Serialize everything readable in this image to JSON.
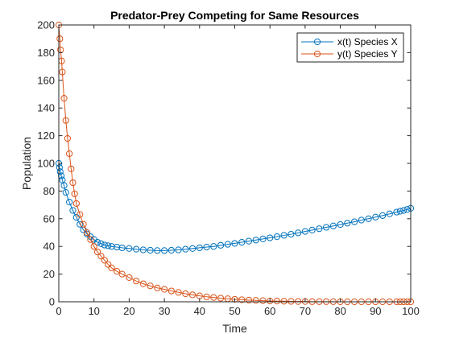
{
  "chart_data": {
    "type": "line",
    "title": "Predator-Prey Competing for Same Resources",
    "xlabel": "Time",
    "ylabel": "Population",
    "xlim": [
      0,
      100
    ],
    "ylim": [
      0,
      200
    ],
    "xticks": [
      "0",
      "10",
      "20",
      "30",
      "40",
      "50",
      "60",
      "70",
      "80",
      "90",
      "100"
    ],
    "yticks": [
      "0",
      "20",
      "40",
      "60",
      "80",
      "100",
      "120",
      "140",
      "160",
      "180",
      "200"
    ],
    "grid": false,
    "legend_location": "top-right",
    "marker": "circle",
    "series": [
      {
        "name": "x(t) Species X",
        "color": "#0072BD",
        "points": [
          [
            0,
            100
          ],
          [
            0.2,
            97
          ],
          [
            0.4,
            94
          ],
          [
            0.7,
            91
          ],
          [
            1,
            88
          ],
          [
            1.5,
            84
          ],
          [
            2,
            79
          ],
          [
            3,
            72
          ],
          [
            4,
            66
          ],
          [
            5,
            61
          ],
          [
            6,
            56
          ],
          [
            7,
            52
          ],
          [
            8,
            49
          ],
          [
            9,
            47
          ],
          [
            10,
            45
          ],
          [
            11,
            43
          ],
          [
            12,
            42
          ],
          [
            13,
            41
          ],
          [
            14,
            40.5
          ],
          [
            15,
            40
          ],
          [
            16.5,
            39.5
          ],
          [
            18,
            39
          ],
          [
            20,
            38.5
          ],
          [
            22,
            38
          ],
          [
            24,
            37.5
          ],
          [
            26,
            37.2
          ],
          [
            28,
            37
          ],
          [
            30,
            37
          ],
          [
            32,
            37.2
          ],
          [
            34,
            37.5
          ],
          [
            36,
            38
          ],
          [
            38,
            38.5
          ],
          [
            40,
            39
          ],
          [
            42,
            39.5
          ],
          [
            44,
            40
          ],
          [
            46,
            40.8
          ],
          [
            48,
            41.5
          ],
          [
            50,
            42.2
          ],
          [
            52,
            43
          ],
          [
            54,
            43.8
          ],
          [
            56,
            44.6
          ],
          [
            58,
            45.4
          ],
          [
            60,
            46.2
          ],
          [
            62,
            47
          ],
          [
            64,
            48
          ],
          [
            66,
            48.8
          ],
          [
            68,
            49.8
          ],
          [
            70,
            50.8
          ],
          [
            72,
            51.8
          ],
          [
            74,
            52.8
          ],
          [
            76,
            53.8
          ],
          [
            78,
            54.8
          ],
          [
            80,
            55.8
          ],
          [
            82,
            56.8
          ],
          [
            84,
            57.8
          ],
          [
            86,
            59
          ],
          [
            88,
            60
          ],
          [
            90,
            61.2
          ],
          [
            92,
            62.3
          ],
          [
            94,
            63.5
          ],
          [
            96,
            64.8
          ],
          [
            97,
            65.4
          ],
          [
            98,
            66
          ],
          [
            99,
            66.7
          ],
          [
            100,
            67.5
          ]
        ]
      },
      {
        "name": "y(t) Species Y",
        "color": "#D95319",
        "points": [
          [
            0,
            200
          ],
          [
            0.3,
            190
          ],
          [
            0.5,
            182
          ],
          [
            0.8,
            174
          ],
          [
            1,
            166
          ],
          [
            1.5,
            147
          ],
          [
            2,
            131
          ],
          [
            2.5,
            118
          ],
          [
            3,
            107
          ],
          [
            3.5,
            96
          ],
          [
            4,
            86
          ],
          [
            4.5,
            78
          ],
          [
            5,
            71
          ],
          [
            6,
            63
          ],
          [
            7,
            56
          ],
          [
            8,
            50
          ],
          [
            9,
            45
          ],
          [
            10,
            40
          ],
          [
            11,
            36
          ],
          [
            12,
            33
          ],
          [
            13,
            30
          ],
          [
            14,
            27
          ],
          [
            15,
            24.5
          ],
          [
            16.5,
            22
          ],
          [
            18,
            20
          ],
          [
            20,
            17.5
          ],
          [
            22,
            15
          ],
          [
            24,
            13
          ],
          [
            26,
            11.5
          ],
          [
            28,
            10
          ],
          [
            30,
            9
          ],
          [
            32,
            7.8
          ],
          [
            34,
            6.8
          ],
          [
            36,
            5.8
          ],
          [
            38,
            5
          ],
          [
            40,
            4.3
          ],
          [
            42,
            3.6
          ],
          [
            44,
            3.1
          ],
          [
            46,
            2.6
          ],
          [
            48,
            2.2
          ],
          [
            50,
            1.8
          ],
          [
            52,
            1.5
          ],
          [
            54,
            1.2
          ],
          [
            56,
            1
          ],
          [
            58,
            0.8
          ],
          [
            60,
            0.6
          ],
          [
            62,
            0.5
          ],
          [
            64,
            0.4
          ],
          [
            66,
            0.3
          ],
          [
            68,
            0.2
          ],
          [
            70,
            0.2
          ],
          [
            72,
            0.1
          ],
          [
            74,
            0.1
          ],
          [
            76,
            0.1
          ],
          [
            78,
            0.1
          ],
          [
            80,
            0
          ],
          [
            82,
            0
          ],
          [
            84,
            0
          ],
          [
            86,
            0
          ],
          [
            88,
            0
          ],
          [
            90,
            0
          ],
          [
            92,
            0
          ],
          [
            94,
            0
          ],
          [
            96,
            0
          ],
          [
            97,
            0
          ],
          [
            98,
            0
          ],
          [
            99,
            0
          ],
          [
            100,
            0
          ]
        ]
      }
    ]
  }
}
